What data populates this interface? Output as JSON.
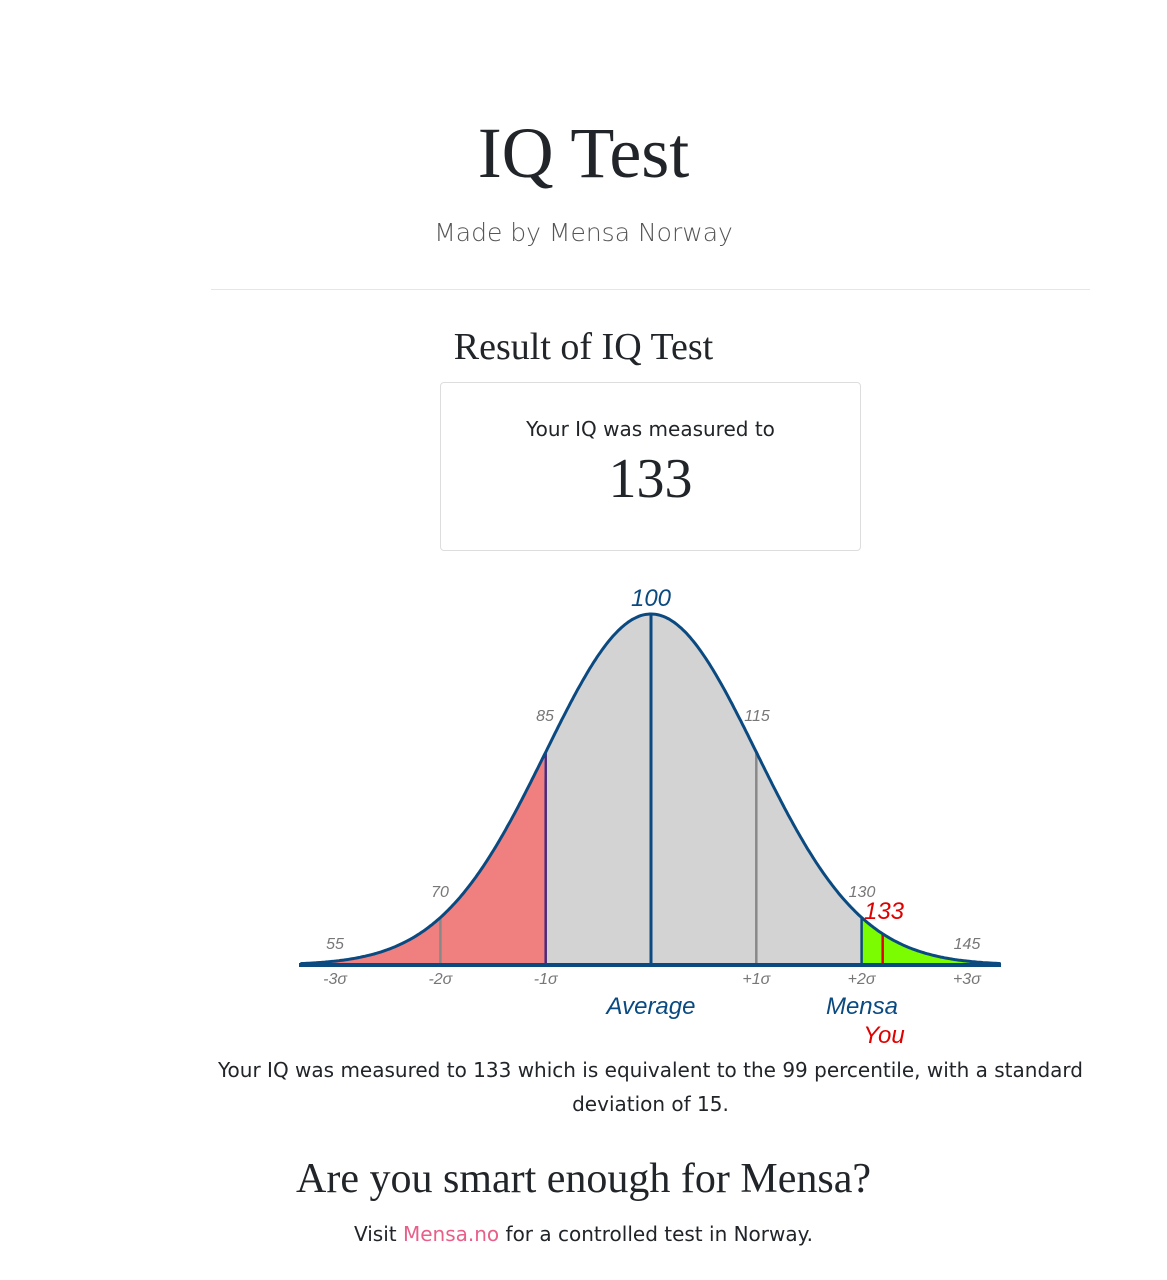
{
  "header": {
    "title": "IQ Test",
    "subtitle": "Made by Mensa Norway"
  },
  "result": {
    "heading": "Result of IQ Test",
    "label": "Your IQ was measured to",
    "value": "133"
  },
  "description": {
    "text": "Your IQ was measured to 133 which is equivalent to the 99 percentile, with a standard deviation of 15."
  },
  "cta": {
    "heading": "Are you smart enough for Mensa?",
    "prefix": "Visit ",
    "link": "Mensa.no",
    "suffix": " for a controlled test in Norway."
  },
  "chart_data": {
    "type": "area",
    "title": "",
    "distribution": "normal",
    "mean": 100,
    "sd": 15,
    "xlim": [
      55,
      145
    ],
    "value_labels": [
      "55",
      "70",
      "85",
      "100",
      "115",
      "130",
      "145"
    ],
    "sigma_labels": [
      "-3σ",
      "-2σ",
      "-1σ",
      "+1σ",
      "+2σ",
      "+3σ"
    ],
    "sigma_values": [
      55,
      70,
      85,
      115,
      130,
      145
    ],
    "regions": [
      {
        "name": "below",
        "from": 50,
        "to": 85,
        "color": "#f08080"
      },
      {
        "name": "middle",
        "from": 85,
        "to": 130,
        "color": "#d3d3d3"
      },
      {
        "name": "mensa",
        "from": 130,
        "to": 150,
        "color": "#7cfc00"
      }
    ],
    "markers": [
      {
        "value": 70,
        "color": "#888888"
      },
      {
        "value": 85,
        "color": "#4b2a7a"
      },
      {
        "value": 100,
        "color": "#0b4a80"
      },
      {
        "value": 115,
        "color": "#888888"
      },
      {
        "value": 130,
        "color": "#0b4a80"
      },
      {
        "value": 133,
        "color": "#e00000"
      }
    ],
    "annotations": {
      "average": "Average",
      "mensa": "Mensa",
      "you": "You",
      "you_value": "133"
    },
    "colors": {
      "curve": "#0b4a80",
      "label": "#777777",
      "you": "#e00000"
    }
  }
}
